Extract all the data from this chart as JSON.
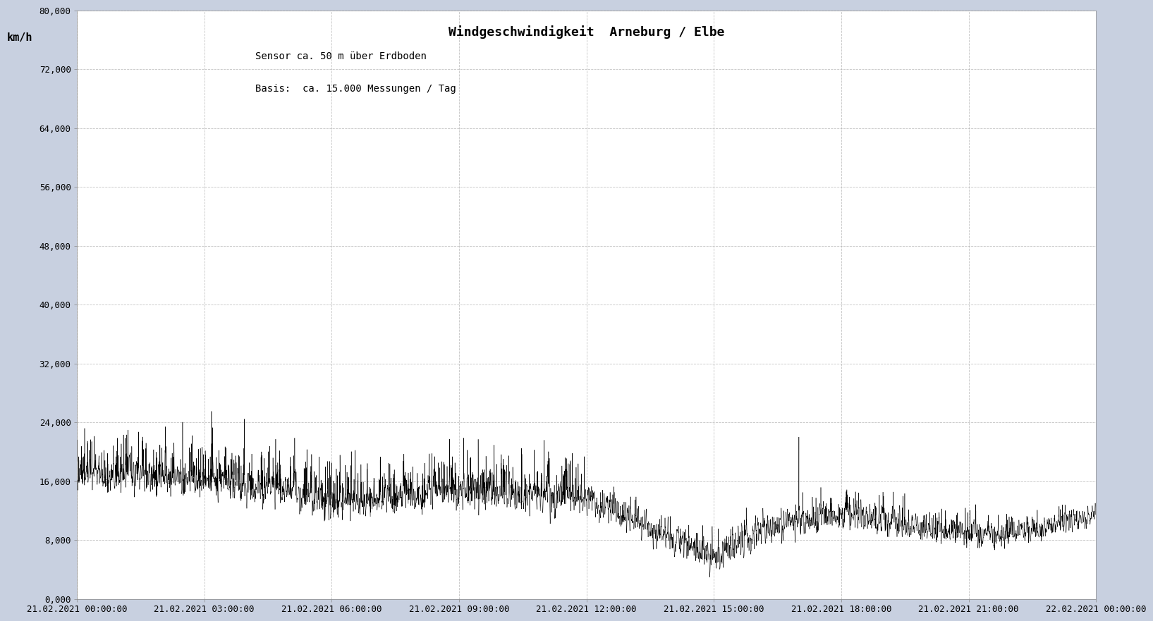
{
  "title": "Windgeschwindigkeit  Arneburg / Elbe",
  "subtitle1": "Sensor ca. 50 m über Erdboden",
  "subtitle2": "Basis:  ca. 15.000 Messungen / Tag",
  "ylabel": "km/h",
  "ylim": [
    0,
    80000
  ],
  "yticks": [
    0,
    8000,
    16000,
    24000,
    32000,
    40000,
    48000,
    56000,
    64000,
    72000,
    80000
  ],
  "ytick_labels": [
    "0,000",
    "8,000",
    "16,000",
    "24,000",
    "32,000",
    "40,000",
    "48,000",
    "56,000",
    "64,000",
    "72,000",
    "80,000"
  ],
  "x_start": 0,
  "x_end": 86400,
  "xtick_positions": [
    0,
    10800,
    21600,
    32400,
    43200,
    54000,
    64800,
    75600,
    86400
  ],
  "xtick_labels": [
    "21.02.2021 00:00:00",
    "21.02.2021 03:00:00",
    "21.02.2021 06:00:00",
    "21.02.2021 09:00:00",
    "21.02.2021 12:00:00",
    "21.02.2021 15:00:00",
    "21.02.2021 18:00:00",
    "21.02.2021 21:00:00",
    "22.02.2021 00:00:00"
  ],
  "line_color": "#000000",
  "fig_bg_color": "#c8d0e0",
  "plot_bg_color": "#ffffff",
  "grid_color": "#aaaaaa",
  "title_fontsize": 13,
  "subtitle_fontsize": 10,
  "tick_fontsize": 9,
  "ylabel_fontsize": 11,
  "seed": 42,
  "n_points": 17280
}
